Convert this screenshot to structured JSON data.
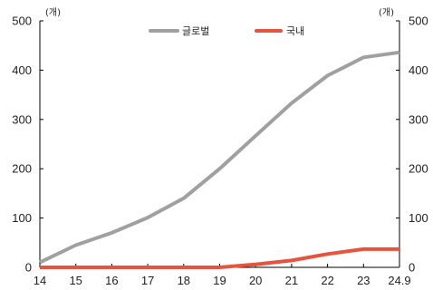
{
  "chart_data": {
    "type": "line",
    "categories": [
      "14",
      "15",
      "16",
      "17",
      "18",
      "19",
      "20",
      "21",
      "22",
      "23",
      "24.9"
    ],
    "series": [
      {
        "name": "글로벌",
        "color": "#a0a0a0",
        "values": [
          10,
          45,
          70,
          101,
          140,
          200,
          267,
          333,
          389,
          426,
          436
        ]
      },
      {
        "name": "국내",
        "color": "#e8533e",
        "values": [
          0,
          0,
          0,
          0,
          0,
          0,
          6,
          14,
          27,
          37,
          37
        ]
      }
    ],
    "left_axis": {
      "unit": "(개)",
      "ylim": [
        0,
        500
      ],
      "ticks": [
        "0",
        "100",
        "200",
        "300",
        "400",
        "500"
      ]
    },
    "right_axis": {
      "unit": "(개)",
      "ylim": [
        0,
        500
      ],
      "ticks": [
        "0",
        "100",
        "200",
        "300",
        "400",
        "500"
      ]
    },
    "legend_position": "top-center",
    "grid": false
  }
}
